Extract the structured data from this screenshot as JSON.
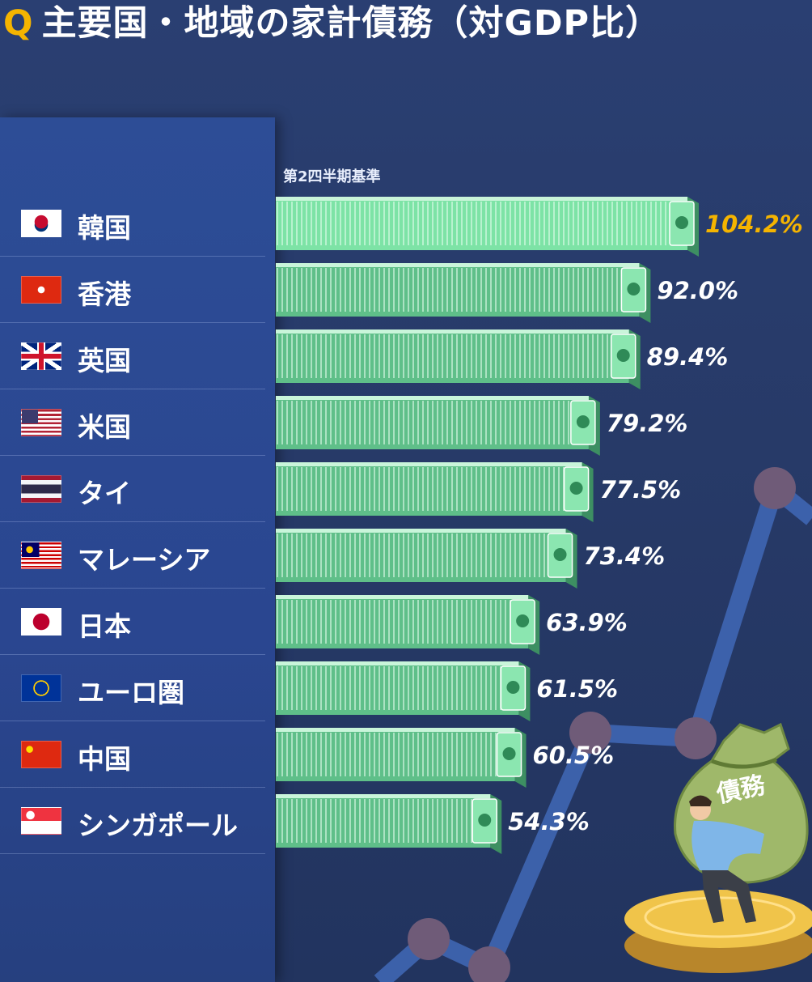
{
  "header": {
    "q_mark": "Q",
    "title": "主要国・地域の家計債務（対GDP比）"
  },
  "illustration": {
    "bag_label": "債務"
  },
  "colors": {
    "background": "#273a68",
    "panel": "#2b4891",
    "bar_green": "#6fd69a",
    "highlight_value": "#f5b400",
    "normal_value": "#ffffff"
  },
  "chart_data": {
    "type": "bar",
    "orientation": "horizontal",
    "note": "第2四半期基準",
    "categories": [
      "韓国",
      "香港",
      "英国",
      "米国",
      "タイ",
      "マレーシア",
      "日本",
      "ユーロ圏",
      "中国",
      "シンガポール"
    ],
    "values": [
      104.2,
      92.0,
      89.4,
      79.2,
      77.5,
      73.4,
      63.9,
      61.5,
      60.5,
      54.3
    ],
    "value_labels": [
      "104.2%",
      "92.0%",
      "89.4%",
      "79.2%",
      "77.5%",
      "73.4%",
      "63.9%",
      "61.5%",
      "60.5%",
      "54.3%"
    ],
    "highlight_index": 0,
    "flags": [
      "kr-flag-icon",
      "hk-flag-icon",
      "gb-flag-icon",
      "us-flag-icon",
      "th-flag-icon",
      "my-flag-icon",
      "jp-flag-icon",
      "eu-flag-icon",
      "cn-flag-icon",
      "sg-flag-icon"
    ]
  }
}
